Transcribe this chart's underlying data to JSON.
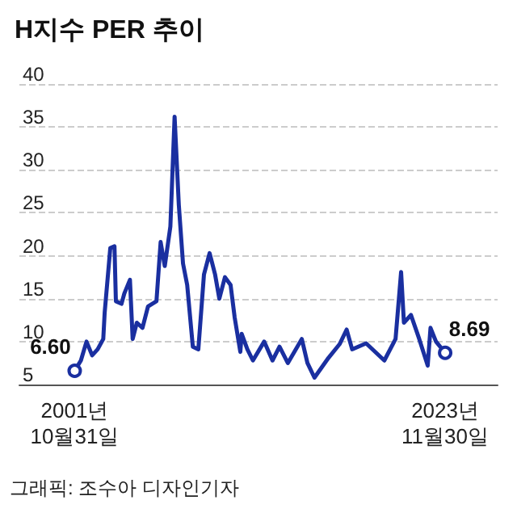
{
  "chart_data": {
    "type": "line",
    "title": "H지수 PER 추이",
    "annotations": [
      "그래픽: 조수아 디자인기자"
    ],
    "x": [
      "2001-10-31",
      "2002-03",
      "2002-07",
      "2002-11",
      "2003-03",
      "2003-07",
      "2003-08",
      "2003-12",
      "2004-03",
      "2004-04",
      "2004-08",
      "2004-10",
      "2005-02",
      "2005-04",
      "2005-07",
      "2005-11",
      "2006-03",
      "2006-09",
      "2006-12",
      "2007-03",
      "2007-07",
      "2007-10",
      "2008-01",
      "2008-04",
      "2008-07",
      "2008-11",
      "2009-03",
      "2009-07",
      "2009-11",
      "2010-03",
      "2010-06",
      "2010-10",
      "2011-02",
      "2011-05",
      "2011-09",
      "2011-10",
      "2012-02",
      "2012-06",
      "2013-02",
      "2013-08",
      "2014-01",
      "2014-07",
      "2015-05",
      "2015-09",
      "2016-02",
      "2016-12",
      "2017-08",
      "2018-01",
      "2018-05",
      "2019-03",
      "2020-04",
      "2020-12",
      "2021-04",
      "2021-06",
      "2021-11",
      "2022-05",
      "2022-11",
      "2023-01",
      "2023-05",
      "2023-11-30"
    ],
    "series": [
      {
        "color": "#1a2fa0",
        "values": [
          6.6,
          7.8,
          10.0,
          8.4,
          9.1,
          10.3,
          13.4,
          20.9,
          21.1,
          14.7,
          14.4,
          15.6,
          17.2,
          10.3,
          12.2,
          11.6,
          14.1,
          14.7,
          21.6,
          18.8,
          23.4,
          36.2,
          25.9,
          19.1,
          16.6,
          9.4,
          9.1,
          17.8,
          20.3,
          17.8,
          15.0,
          17.5,
          16.6,
          12.8,
          8.8,
          10.9,
          9.1,
          7.8,
          10.0,
          7.8,
          9.4,
          7.5,
          10.3,
          7.5,
          5.8,
          8.1,
          9.7,
          11.4,
          9.1,
          9.8,
          7.8,
          10.3,
          18.1,
          12.2,
          13.1,
          10.3,
          7.2,
          11.6,
          10.0,
          8.69
        ],
        "value_labels": [
          "6.60",
          null,
          null,
          null,
          null,
          null,
          null,
          null,
          null,
          null,
          null,
          null,
          null,
          null,
          null,
          null,
          null,
          null,
          null,
          null,
          null,
          null,
          null,
          null,
          null,
          null,
          null,
          null,
          null,
          null,
          null,
          null,
          null,
          null,
          null,
          null,
          null,
          null,
          null,
          null,
          null,
          null,
          null,
          null,
          null,
          null,
          null,
          null,
          null,
          null,
          null,
          null,
          null,
          null,
          null,
          null,
          null,
          null,
          null,
          "8.69"
        ]
      }
    ],
    "xlim": [
      "1998-07",
      "2027-01"
    ],
    "xticks": [
      {
        "value": "2001-10-31",
        "label": "2001년\n10월31일"
      },
      {
        "value": "2023-11-30",
        "label": "2023년\n11월30일"
      }
    ],
    "ylim": [
      5,
      40
    ],
    "yticks": [
      5,
      10,
      15,
      20,
      25,
      30,
      35,
      40
    ],
    "grid": "y",
    "line_style": "solid"
  }
}
